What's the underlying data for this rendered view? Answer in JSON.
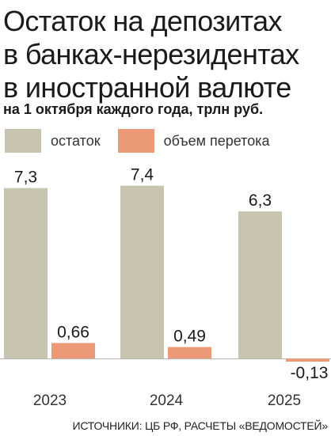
{
  "title_lines": [
    "Остаток на депозитах",
    "в банках-нерезидентах",
    "в иностранной валюте"
  ],
  "subtitle": "на 1 октября каждого года, трлн руб.",
  "source": "ИСТОЧНИКИ: ЦБ РФ, РАСЧЕТЫ «ВЕДОМОСТЕЙ»",
  "colors": {
    "balance": "#c7c5b0",
    "flow": "#ec9978",
    "axis": "#b5b5b5"
  },
  "chart_data": {
    "type": "bar",
    "title": "Остаток на депозитах в банках-нерезидентах в иностранной валюте",
    "subtitle": "на 1 октября каждого года, трлн руб.",
    "categories": [
      "2023",
      "2024",
      "2025"
    ],
    "series": [
      {
        "name": "остаток",
        "values": [
          7.3,
          7.4,
          6.3
        ],
        "labels": [
          "7,3",
          "7,4",
          "6,3"
        ]
      },
      {
        "name": "объем перетока",
        "values": [
          0.66,
          0.49,
          -0.13
        ],
        "labels": [
          "0,66",
          "0,49",
          "-0,13"
        ]
      }
    ],
    "ylim": [
      -0.3,
      7.7
    ],
    "grid": false,
    "legend": "top-left"
  }
}
